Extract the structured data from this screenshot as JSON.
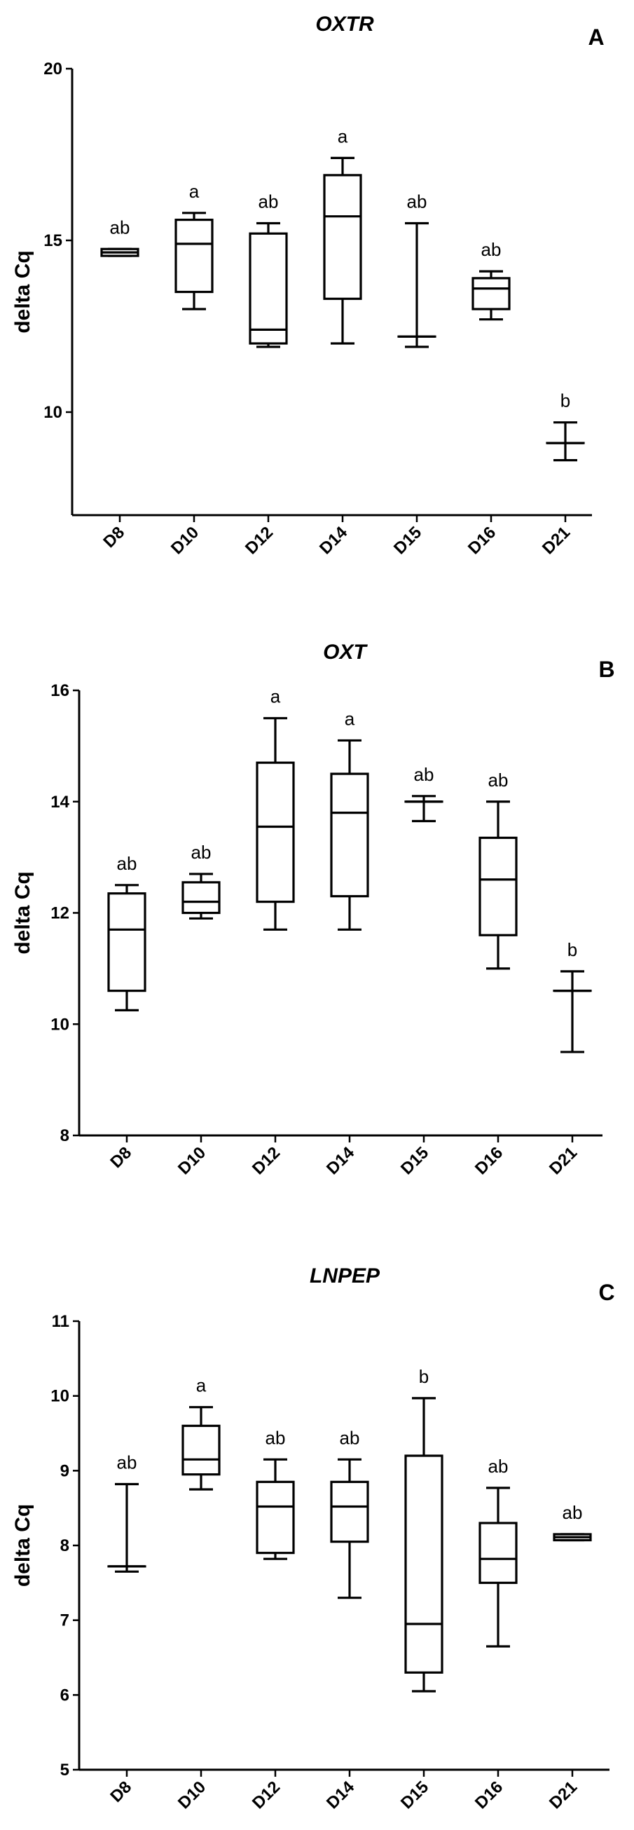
{
  "chart_data": [
    {
      "type": "box",
      "panel": "A",
      "title": "OXTR",
      "xlabel": "",
      "ylabel": "delta Cq",
      "ylim": [
        7,
        20
      ],
      "yticks": [
        10,
        15,
        20
      ],
      "categories": [
        "D8",
        "D10",
        "D12",
        "D14",
        "D15",
        "D16",
        "D21"
      ],
      "boxes": [
        {
          "min": 14.55,
          "q1": 14.55,
          "median": 14.65,
          "q3": 14.75,
          "max": 14.75
        },
        {
          "min": 13.0,
          "q1": 13.5,
          "median": 14.9,
          "q3": 15.6,
          "max": 15.8
        },
        {
          "min": 11.9,
          "q1": 12.0,
          "median": 12.4,
          "q3": 15.2,
          "max": 15.5
        },
        {
          "min": 12.0,
          "q1": 13.3,
          "median": 15.7,
          "q3": 16.9,
          "max": 17.4
        },
        {
          "min": 11.9,
          "q1": 12.2,
          "median": 12.2,
          "q3": 12.2,
          "max": 15.5
        },
        {
          "min": 12.7,
          "q1": 13.0,
          "median": 13.6,
          "q3": 13.9,
          "max": 14.1
        },
        {
          "min": 8.6,
          "q1": 9.1,
          "median": 9.1,
          "q3": 9.1,
          "max": 9.7
        }
      ],
      "annotations": [
        "ab",
        "a",
        "ab",
        "a",
        "ab",
        "ab",
        "b"
      ],
      "grid": false
    },
    {
      "type": "box",
      "panel": "B",
      "title": "OXT",
      "xlabel": "",
      "ylabel": "delta Cq",
      "ylim": [
        8,
        16
      ],
      "yticks": [
        8,
        10,
        12,
        14,
        16
      ],
      "categories": [
        "D8",
        "D10",
        "D12",
        "D14",
        "D15",
        "D16",
        "D21"
      ],
      "boxes": [
        {
          "min": 10.25,
          "q1": 10.6,
          "median": 11.7,
          "q3": 12.35,
          "max": 12.5
        },
        {
          "min": 11.9,
          "q1": 12.0,
          "median": 12.2,
          "q3": 12.55,
          "max": 12.7
        },
        {
          "min": 11.7,
          "q1": 12.2,
          "median": 13.55,
          "q3": 14.7,
          "max": 15.5
        },
        {
          "min": 11.7,
          "q1": 12.3,
          "median": 13.8,
          "q3": 14.5,
          "max": 15.1
        },
        {
          "min": 13.65,
          "q1": 14.0,
          "median": 14.0,
          "q3": 14.0,
          "max": 14.1
        },
        {
          "min": 11.0,
          "q1": 11.6,
          "median": 12.6,
          "q3": 13.35,
          "max": 14.0
        },
        {
          "min": 9.5,
          "q1": 10.6,
          "median": 10.6,
          "q3": 10.6,
          "max": 10.95
        }
      ],
      "annotations": [
        "ab",
        "ab",
        "a",
        "a",
        "ab",
        "ab",
        "b"
      ],
      "grid": false
    },
    {
      "type": "box",
      "panel": "C",
      "title": "LNPEP",
      "xlabel": "",
      "ylabel": "delta Cq",
      "ylim": [
        5,
        11
      ],
      "yticks": [
        5,
        6,
        7,
        8,
        9,
        10,
        11
      ],
      "categories": [
        "D8",
        "D10",
        "D12",
        "D14",
        "D15",
        "D16",
        "D21"
      ],
      "boxes": [
        {
          "min": 7.65,
          "q1": 7.72,
          "median": 7.72,
          "q3": 7.72,
          "max": 8.82
        },
        {
          "min": 8.75,
          "q1": 8.95,
          "median": 9.15,
          "q3": 9.6,
          "max": 9.85
        },
        {
          "min": 7.82,
          "q1": 7.9,
          "median": 8.52,
          "q3": 8.85,
          "max": 9.15
        },
        {
          "min": 7.3,
          "q1": 8.05,
          "median": 8.52,
          "q3": 8.85,
          "max": 9.15
        },
        {
          "min": 6.05,
          "q1": 6.3,
          "median": 6.95,
          "q3": 9.2,
          "max": 9.97
        },
        {
          "min": 6.65,
          "q1": 7.5,
          "median": 7.82,
          "q3": 8.3,
          "max": 8.77
        },
        {
          "min": 8.07,
          "q1": 8.07,
          "median": 8.11,
          "q3": 8.15,
          "max": 8.15
        }
      ],
      "annotations": [
        "ab",
        "a",
        "ab",
        "ab",
        "b",
        "ab",
        "ab"
      ],
      "grid": false
    }
  ]
}
